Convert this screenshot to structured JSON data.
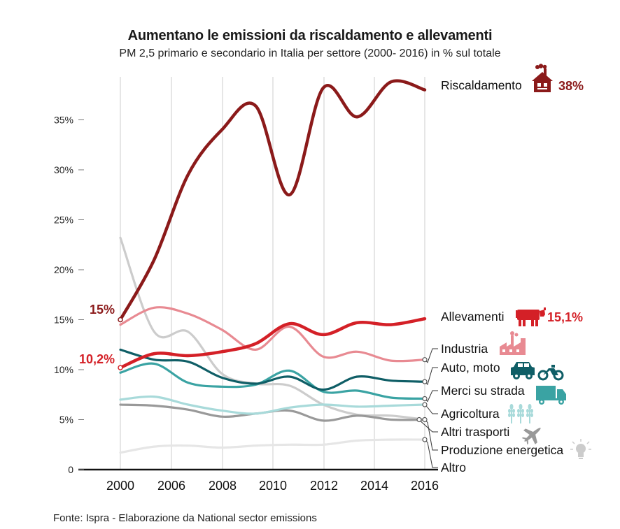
{
  "title": "Aumentano le emissioni da riscaldamento e allevamenti",
  "subtitle": "PM 2,5 primario e secondario in Italia per settore (2000- 2016) in % sul totale",
  "source": "Fonte: Ispra - Elaborazione da National sector emissions",
  "chart_data": {
    "type": "line",
    "title": "Aumentano le emissioni da riscaldamento e allevamenti",
    "subtitle": "PM 2,5 primario e secondario in Italia per settore (2000- 2016) in % sul totale",
    "x_tick_labels": [
      "2000",
      "2006",
      "2008",
      "2010",
      "2012",
      "2014",
      "2016"
    ],
    "y_ticks": [
      0,
      5,
      10,
      15,
      20,
      25,
      30,
      35
    ],
    "y_tick_labels": [
      "0",
      "5%",
      "10%",
      "15%",
      "20%",
      "25%",
      "30%",
      "35%"
    ],
    "ylim": [
      0,
      38
    ],
    "grid": true,
    "start_annotations": [
      {
        "series": "Riscaldamento",
        "text": "15%",
        "color": "#8b1a1a"
      },
      {
        "series": "Allevamenti",
        "text": "10,2%",
        "color": "#d42027"
      }
    ],
    "series": [
      {
        "name": "Riscaldamento",
        "end_label": "38%",
        "color": "#8b1a1a",
        "icon": "house-icon",
        "values": [
          15.0,
          21.0,
          29.5,
          34.0,
          36.4,
          27.5,
          38.2,
          35.3,
          38.8,
          38.0
        ]
      },
      {
        "name": "Allevamenti",
        "end_label": "15,1%",
        "color": "#d42027",
        "icon": "cow-icon",
        "values": [
          10.2,
          11.6,
          11.4,
          11.8,
          12.6,
          14.6,
          13.5,
          14.7,
          14.5,
          15.1
        ]
      },
      {
        "name": "Industria",
        "color": "#e88a92",
        "icon": "factory-icon",
        "values": [
          14.5,
          16.2,
          15.6,
          14.0,
          12.0,
          14.3,
          11.3,
          11.8,
          10.9,
          11.0
        ]
      },
      {
        "name": "Auto, moto",
        "color": "#0f5e66",
        "icon": "car-moto-icon",
        "values": [
          12.0,
          11.0,
          10.8,
          9.2,
          8.6,
          9.3,
          8.0,
          9.3,
          8.9,
          8.8
        ]
      },
      {
        "name": "Merci su strada",
        "color": "#3aa3a3",
        "icon": "truck-icon",
        "values": [
          9.7,
          10.6,
          8.7,
          8.3,
          8.5,
          9.9,
          7.8,
          7.9,
          7.2,
          7.1
        ]
      },
      {
        "name": "Agricoltura",
        "color": "#a8dada",
        "icon": "wheat-icon",
        "values": [
          7.0,
          7.3,
          6.5,
          5.9,
          5.6,
          6.2,
          6.5,
          6.3,
          6.4,
          6.5
        ]
      },
      {
        "name": "Altri trasporti",
        "color": "#999999",
        "icon": "plane-icon",
        "values": [
          6.5,
          6.4,
          6.0,
          5.3,
          5.6,
          5.9,
          4.9,
          5.4,
          5.0,
          5.0
        ]
      },
      {
        "name": "Produzione energetica",
        "color": "#cccccc",
        "icon": "bulb-icon",
        "values": [
          23.2,
          13.8,
          13.8,
          9.6,
          8.6,
          8.4,
          6.5,
          5.5,
          5.4,
          5.0
        ]
      },
      {
        "name": "Altro",
        "color": "#e6e6e6",
        "icon": "",
        "values": [
          1.7,
          2.3,
          2.4,
          2.2,
          2.4,
          2.5,
          2.5,
          2.9,
          3.0,
          3.0
        ]
      }
    ]
  }
}
